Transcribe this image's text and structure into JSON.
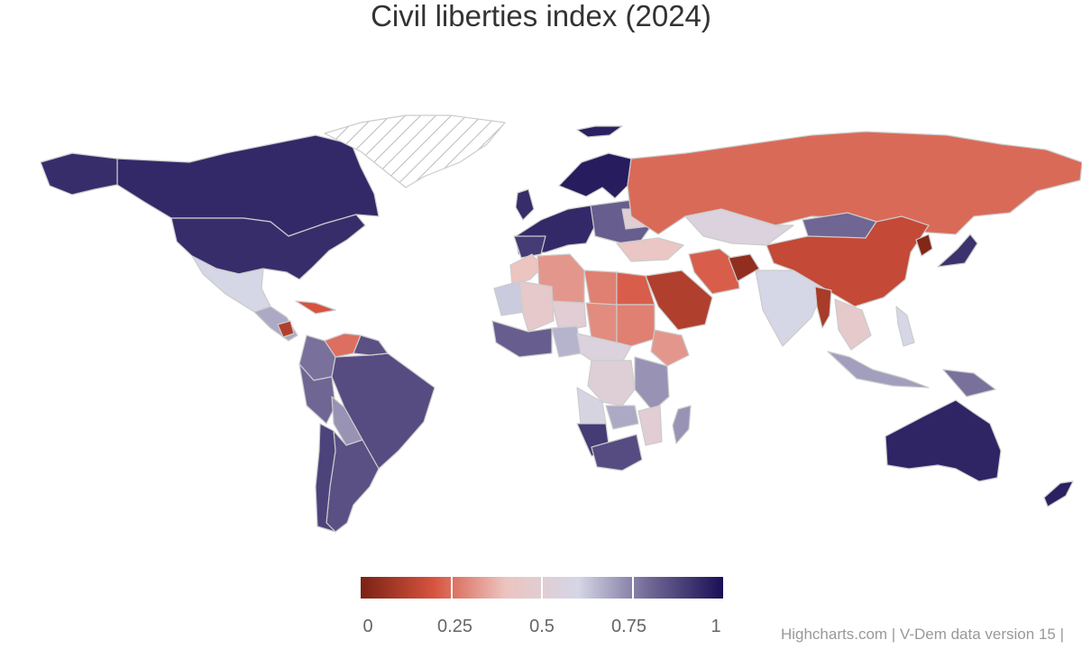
{
  "title": "Civil liberties index (2024)",
  "colorscale": {
    "min": 0,
    "max": 1,
    "stops": [
      "#7a2214",
      "#d6533e",
      "#ecc4c0",
      "#d5d6e6",
      "#6f6694",
      "#1a0f55"
    ],
    "tick_labels": [
      "0",
      "0.25",
      "0.5",
      "0.75",
      "1"
    ],
    "null_pattern": "hatched"
  },
  "credits": "Highcharts.com | V-Dem data version 15 |",
  "regions": [
    {
      "name": "Canada",
      "value": 0.94
    },
    {
      "name": "USA",
      "value": 0.93
    },
    {
      "name": "Alaska",
      "value": 0.93
    },
    {
      "name": "Greenland",
      "value": null
    },
    {
      "name": "Iceland",
      "value": 0.96
    },
    {
      "name": "Mexico",
      "value": 0.6
    },
    {
      "name": "Cuba",
      "value": 0.2
    },
    {
      "name": "Central America",
      "value": 0.68
    },
    {
      "name": "Nicaragua",
      "value": 0.12
    },
    {
      "name": "Venezuela",
      "value": 0.25
    },
    {
      "name": "Colombia",
      "value": 0.78
    },
    {
      "name": "Brazil",
      "value": 0.86
    },
    {
      "name": "Peru",
      "value": 0.8
    },
    {
      "name": "Bolivia",
      "value": 0.72
    },
    {
      "name": "Argentina",
      "value": 0.85
    },
    {
      "name": "Chile",
      "value": 0.88
    },
    {
      "name": "Guianas",
      "value": 0.85
    },
    {
      "name": "UK",
      "value": 0.93
    },
    {
      "name": "Western Europe",
      "value": 0.94
    },
    {
      "name": "Spain",
      "value": 0.9
    },
    {
      "name": "Scandinavia",
      "value": 0.97
    },
    {
      "name": "Eastern Europe",
      "value": 0.82
    },
    {
      "name": "Belarus",
      "value": 0.5
    },
    {
      "name": "Russia",
      "value": 0.24
    },
    {
      "name": "Kazakhstan",
      "value": 0.55
    },
    {
      "name": "Mongolia",
      "value": 0.8
    },
    {
      "name": "China",
      "value": 0.16
    },
    {
      "name": "North Korea",
      "value": 0.02
    },
    {
      "name": "Japan",
      "value": 0.92
    },
    {
      "name": "Turkey",
      "value": 0.42
    },
    {
      "name": "Iran",
      "value": 0.22
    },
    {
      "name": "Afghanistan",
      "value": 0.05
    },
    {
      "name": "Saudi Arabia",
      "value": 0.12
    },
    {
      "name": "India",
      "value": 0.6
    },
    {
      "name": "Myanmar",
      "value": 0.1
    },
    {
      "name": "Southeast Asia",
      "value": 0.45
    },
    {
      "name": "Indonesia",
      "value": 0.7
    },
    {
      "name": "Philippines",
      "value": 0.6
    },
    {
      "name": "Papua New Guinea",
      "value": 0.78
    },
    {
      "name": "Australia",
      "value": 0.95
    },
    {
      "name": "New Zealand",
      "value": 0.96
    },
    {
      "name": "Madagascar",
      "value": 0.72
    },
    {
      "name": "Morocco",
      "value": 0.4
    },
    {
      "name": "Algeria",
      "value": 0.32
    },
    {
      "name": "Libya",
      "value": 0.28
    },
    {
      "name": "Egypt",
      "value": 0.22
    },
    {
      "name": "Mauritania",
      "value": 0.62
    },
    {
      "name": "Mali",
      "value": 0.45
    },
    {
      "name": "Niger",
      "value": 0.5
    },
    {
      "name": "Chad",
      "value": 0.3
    },
    {
      "name": "Sudan",
      "value": 0.28
    },
    {
      "name": "Ethiopia",
      "value": 0.32
    },
    {
      "name": "Nigeria",
      "value": 0.66
    },
    {
      "name": "West Africa",
      "value": 0.82
    },
    {
      "name": "Central Africa",
      "value": 0.55
    },
    {
      "name": "DR Congo",
      "value": 0.52
    },
    {
      "name": "East Africa",
      "value": 0.72
    },
    {
      "name": "Angola",
      "value": 0.58
    },
    {
      "name": "Zambia",
      "value": 0.68
    },
    {
      "name": "Mozambique",
      "value": 0.5
    },
    {
      "name": "Namibia",
      "value": 0.9
    },
    {
      "name": "South Africa",
      "value": 0.86
    }
  ]
}
